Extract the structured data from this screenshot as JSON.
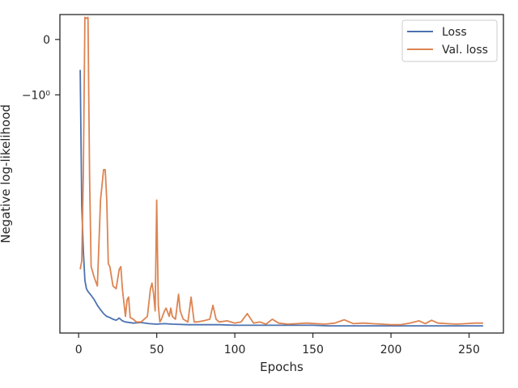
{
  "chart_data": {
    "type": "line",
    "xlabel": "Epochs",
    "ylabel": "Negative log-likelihood",
    "xlim": [
      -12,
      272
    ],
    "ylim": [
      -5.3,
      0.45
    ],
    "yscale": "symlog",
    "x_ticks": [
      0,
      50,
      100,
      150,
      200,
      250
    ],
    "y_ticks": [
      {
        "value": 0,
        "label": "0"
      },
      {
        "value": -1,
        "label": "−10⁰"
      }
    ],
    "grid": false,
    "legend_position": "top-right",
    "series": [
      {
        "name": "Loss",
        "color": "#4c72b0",
        "x": [
          1,
          2,
          3,
          4,
          5,
          6,
          8,
          10,
          12,
          14,
          16,
          18,
          20,
          22,
          24,
          26,
          28,
          30,
          35,
          40,
          45,
          50,
          55,
          60,
          70,
          80,
          90,
          100,
          110,
          120,
          130,
          140,
          150,
          160,
          170,
          180,
          190,
          200,
          210,
          220,
          230,
          240,
          250,
          259
        ],
        "y": [
          -0.55,
          -3.0,
          -3.8,
          -4.35,
          -4.5,
          -4.55,
          -4.62,
          -4.7,
          -4.8,
          -4.88,
          -4.95,
          -5.0,
          -5.02,
          -5.05,
          -5.07,
          -5.03,
          -5.08,
          -5.1,
          -5.12,
          -5.11,
          -5.13,
          -5.14,
          -5.13,
          -5.14,
          -5.15,
          -5.15,
          -5.15,
          -5.16,
          -5.16,
          -5.16,
          -5.16,
          -5.16,
          -5.16,
          -5.17,
          -5.17,
          -5.17,
          -5.17,
          -5.17,
          -5.17,
          -5.17,
          -5.17,
          -5.17,
          -5.17,
          -5.17
        ]
      },
      {
        "name": "Val. loss",
        "color": "#dd8452",
        "x": [
          1,
          2,
          3,
          4,
          5,
          6,
          7,
          8,
          10,
          12,
          14,
          16,
          17,
          18,
          19,
          20,
          22,
          24,
          26,
          27,
          28,
          30,
          31,
          32,
          33,
          35,
          37,
          40,
          44,
          46,
          47,
          48,
          49,
          50,
          51,
          52,
          53,
          55,
          56,
          58,
          59,
          60,
          62,
          64,
          65,
          67,
          70,
          72,
          74,
          76,
          80,
          84,
          86,
          88,
          90,
          95,
          100,
          104,
          108,
          112,
          116,
          120,
          124,
          128,
          134,
          140,
          146,
          152,
          158,
          164,
          170,
          176,
          182,
          188,
          194,
          200,
          206,
          212,
          218,
          222,
          226,
          230,
          236,
          242,
          248,
          254,
          259
        ],
        "y": [
          -4.15,
          -4.0,
          -2.5,
          0.4,
          0.38,
          0.4,
          -2.5,
          -4.1,
          -4.3,
          -4.45,
          -2.9,
          -2.35,
          -2.35,
          -2.9,
          -4.05,
          -4.1,
          -4.45,
          -4.5,
          -4.15,
          -4.1,
          -4.5,
          -5.0,
          -4.7,
          -4.65,
          -5.02,
          -5.05,
          -5.1,
          -5.1,
          -5.0,
          -4.5,
          -4.4,
          -4.6,
          -4.9,
          -2.9,
          -4.8,
          -5.1,
          -5.05,
          -4.9,
          -4.85,
          -5.0,
          -4.85,
          -5.0,
          -5.05,
          -4.6,
          -4.9,
          -5.05,
          -5.1,
          -4.65,
          -5.1,
          -5.1,
          -5.08,
          -5.05,
          -4.8,
          -5.05,
          -5.1,
          -5.08,
          -5.12,
          -5.1,
          -4.95,
          -5.12,
          -5.1,
          -5.14,
          -5.05,
          -5.12,
          -5.14,
          -5.13,
          -5.12,
          -5.13,
          -5.14,
          -5.12,
          -5.06,
          -5.13,
          -5.12,
          -5.13,
          -5.14,
          -5.15,
          -5.15,
          -5.12,
          -5.08,
          -5.13,
          -5.07,
          -5.12,
          -5.13,
          -5.14,
          -5.13,
          -5.12,
          -5.12
        ]
      }
    ]
  }
}
